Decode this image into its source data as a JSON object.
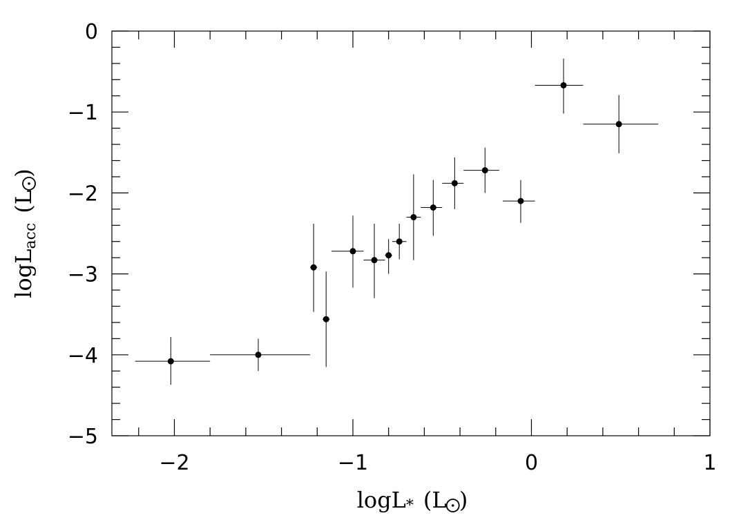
{
  "chart_data": {
    "type": "scatter",
    "xlabel": "logL",
    "xlabel_sub": "*",
    "xlabel_unit": "(L",
    "xlabel_unit_close": ")",
    "ylabel": "logL",
    "ylabel_sub": "acc",
    "ylabel_unit": "(L",
    "ylabel_unit_close": ")",
    "xlim": [
      -2.35,
      1.0
    ],
    "ylim": [
      -5.0,
      0.0
    ],
    "x_ticks": [
      -2,
      -1,
      0,
      1
    ],
    "x_tick_labels": [
      "−2",
      "−1",
      "0",
      "1"
    ],
    "y_ticks": [
      0,
      -1,
      -2,
      -3,
      -4,
      -5
    ],
    "y_tick_labels": [
      "0",
      "−1",
      "−2",
      "−3",
      "−4",
      "−5"
    ],
    "x_minor_step": 0.2,
    "y_minor_step": 0.2,
    "grid": false,
    "marker_color": "#000000",
    "points": [
      {
        "x": -2.02,
        "y": -4.08,
        "x_lo": -2.22,
        "x_hi": -1.8,
        "y_lo": -4.37,
        "y_hi": -3.78
      },
      {
        "x": -1.53,
        "y": -4.0,
        "x_lo": -1.8,
        "x_hi": -1.24,
        "y_lo": -4.2,
        "y_hi": -3.8
      },
      {
        "x": -1.22,
        "y": -2.92,
        "x_lo": -1.24,
        "x_hi": -1.2,
        "y_lo": -3.47,
        "y_hi": -2.38
      },
      {
        "x": -1.15,
        "y": -3.56,
        "x_lo": -1.17,
        "x_hi": -1.13,
        "y_lo": -4.15,
        "y_hi": -2.97
      },
      {
        "x": -1.0,
        "y": -2.72,
        "x_lo": -1.12,
        "x_hi": -0.94,
        "y_lo": -3.17,
        "y_hi": -2.28
      },
      {
        "x": -0.88,
        "y": -2.83,
        "x_lo": -0.94,
        "x_hi": -0.82,
        "y_lo": -3.3,
        "y_hi": -2.38
      },
      {
        "x": -0.8,
        "y": -2.77,
        "x_lo": -0.82,
        "x_hi": -0.78,
        "y_lo": -3.0,
        "y_hi": -2.57
      },
      {
        "x": -0.74,
        "y": -2.6,
        "x_lo": -0.78,
        "x_hi": -0.7,
        "y_lo": -2.82,
        "y_hi": -2.38
      },
      {
        "x": -0.66,
        "y": -2.3,
        "x_lo": -0.7,
        "x_hi": -0.62,
        "y_lo": -2.83,
        "y_hi": -1.77
      },
      {
        "x": -0.55,
        "y": -2.18,
        "x_lo": -0.62,
        "x_hi": -0.5,
        "y_lo": -2.53,
        "y_hi": -1.84
      },
      {
        "x": -0.43,
        "y": -1.88,
        "x_lo": -0.5,
        "x_hi": -0.38,
        "y_lo": -2.2,
        "y_hi": -1.56
      },
      {
        "x": -0.26,
        "y": -1.72,
        "x_lo": -0.38,
        "x_hi": -0.18,
        "y_lo": -2.0,
        "y_hi": -1.44
      },
      {
        "x": -0.06,
        "y": -2.1,
        "x_lo": -0.16,
        "x_hi": 0.02,
        "y_lo": -2.37,
        "y_hi": -1.84
      },
      {
        "x": 0.18,
        "y": -0.67,
        "x_lo": 0.02,
        "x_hi": 0.29,
        "y_lo": -1.02,
        "y_hi": -0.34
      },
      {
        "x": 0.49,
        "y": -1.15,
        "x_lo": 0.29,
        "x_hi": 0.71,
        "y_lo": -1.51,
        "y_hi": -0.79
      }
    ]
  }
}
